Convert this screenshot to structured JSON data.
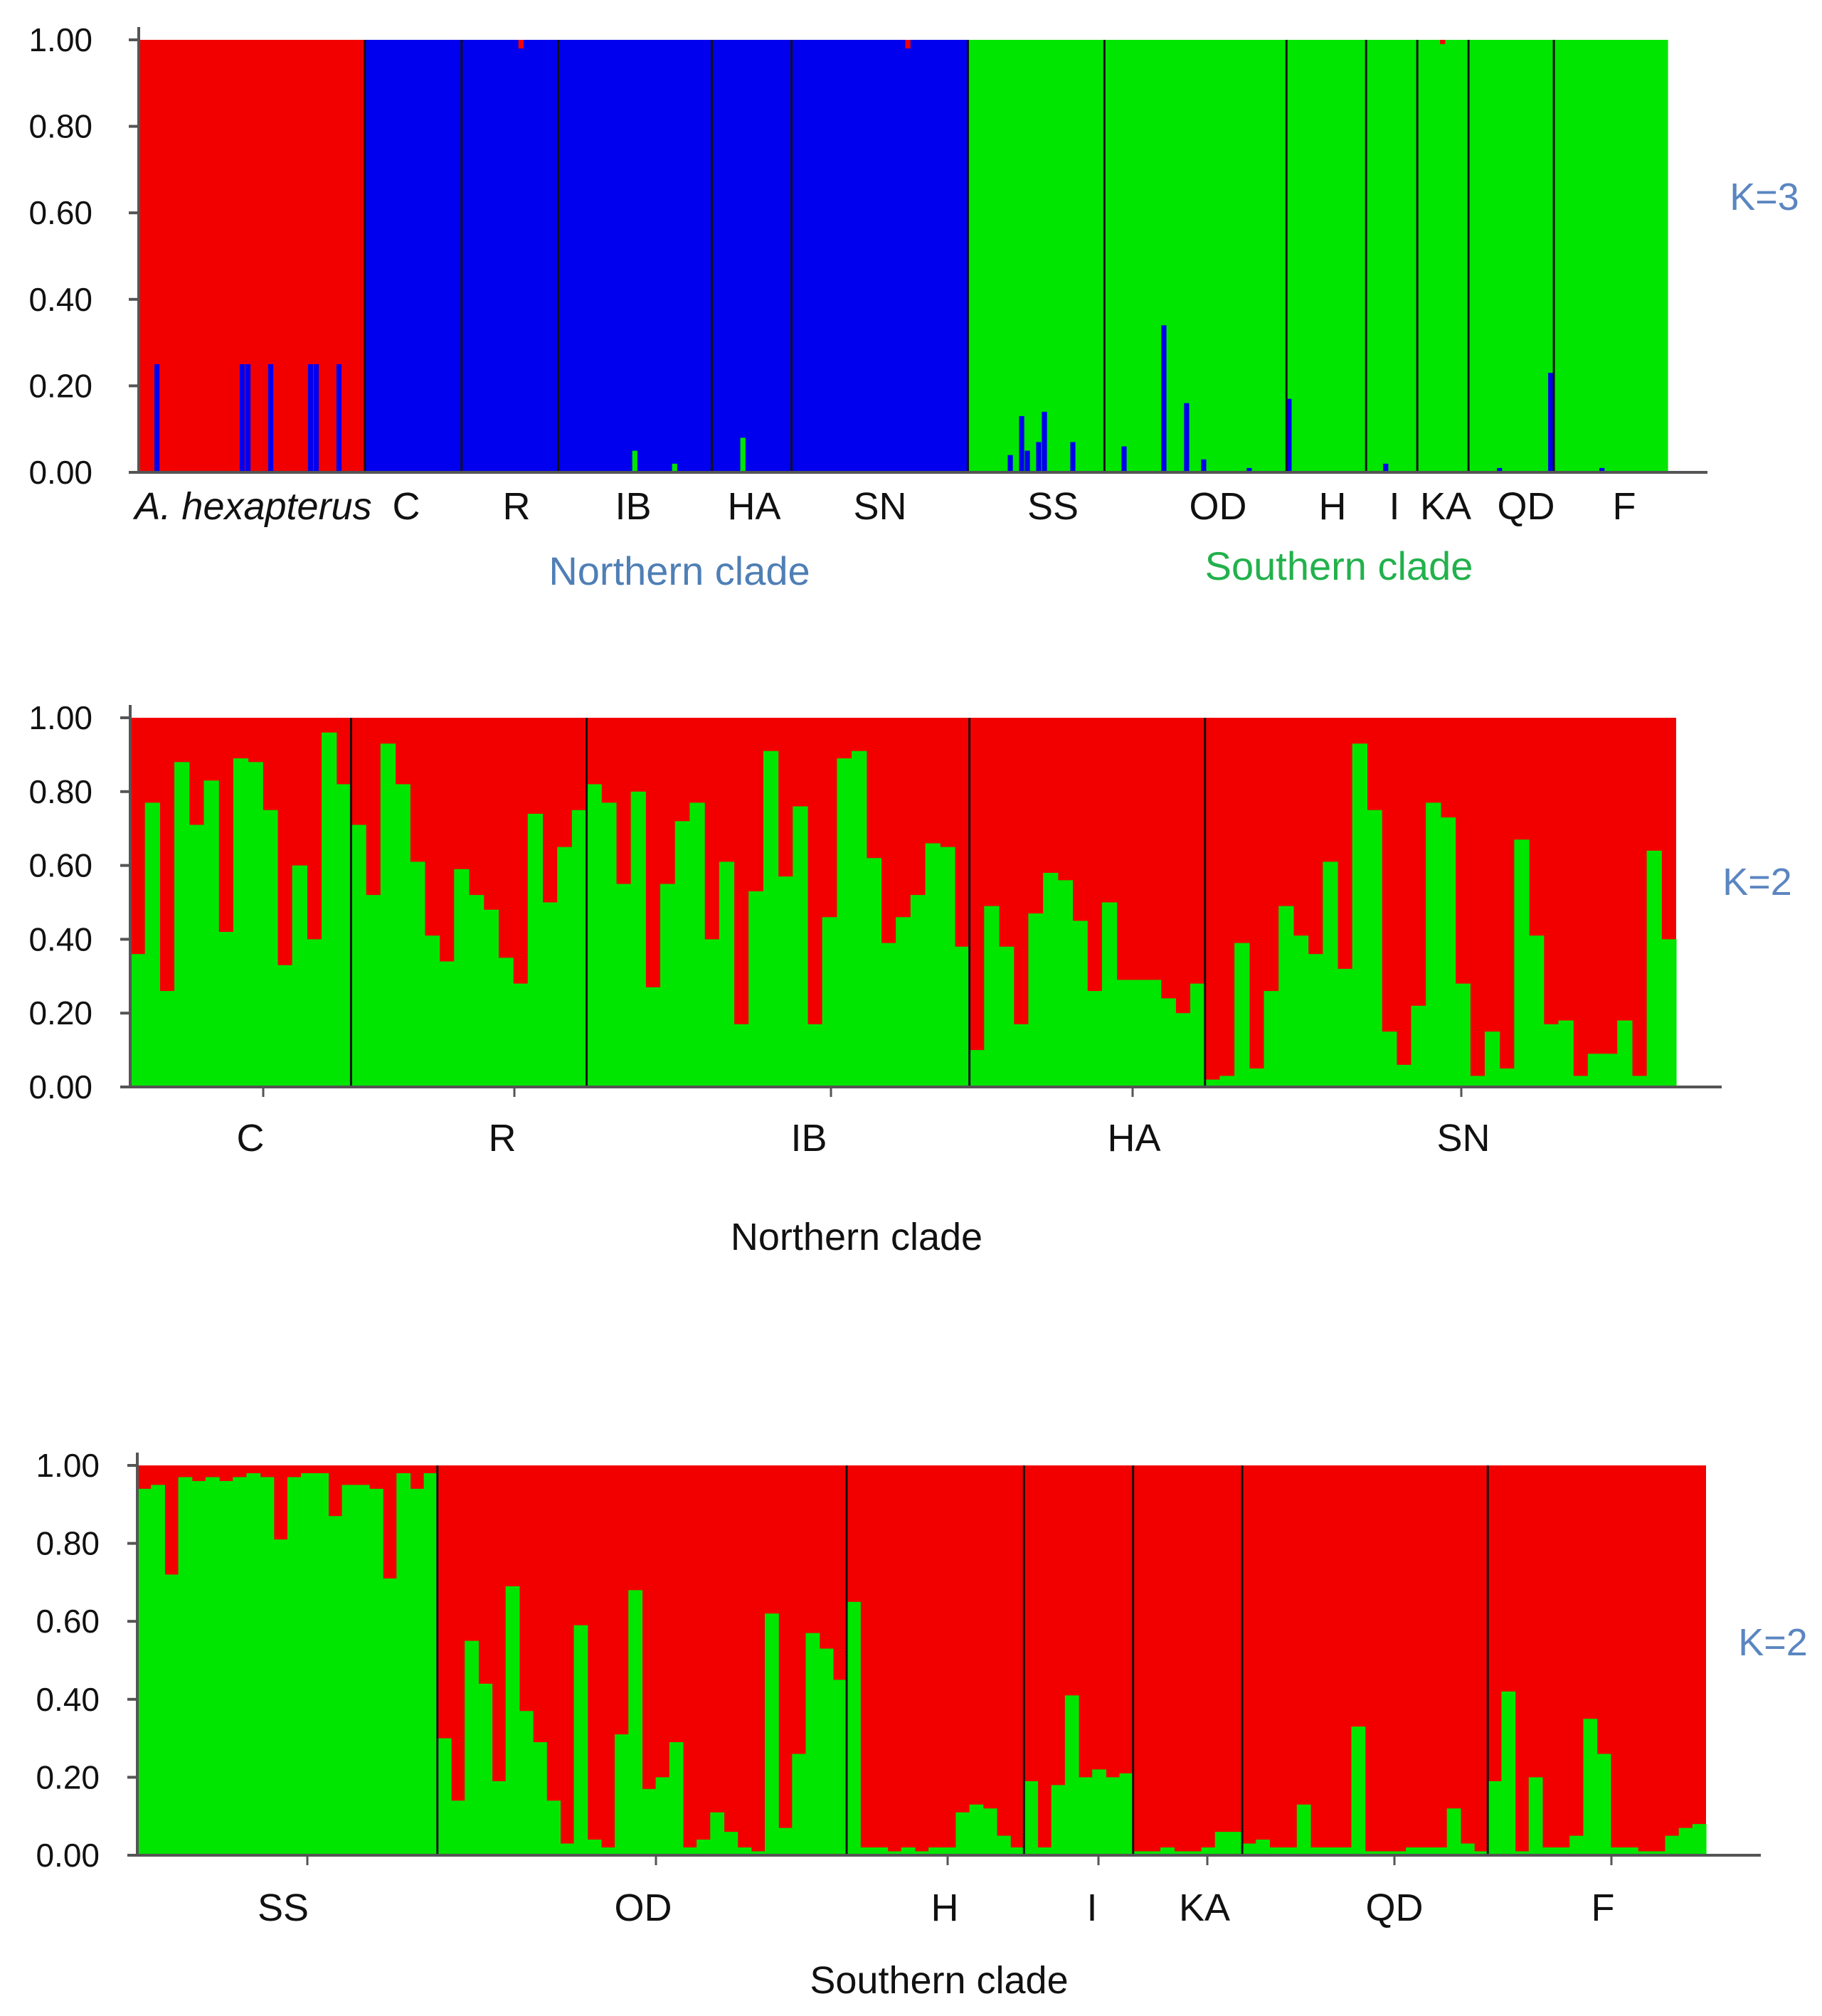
{
  "colors": {
    "red": "#f20000",
    "green": "#00e600",
    "blue": "#0000ee",
    "northern": "#4f7fb5",
    "southern": "#22b14c",
    "klabel": "#5b86c0"
  },
  "chart_data": [
    {
      "type": "bar",
      "stacked": true,
      "ylim": [
        0,
        1
      ],
      "yticks": [
        "0.00",
        "0.20",
        "0.40",
        "0.60",
        "0.80",
        "1.00"
      ],
      "k_label": "K=3",
      "groups": [
        {
          "label": "A. hexapterus",
          "italic": true,
          "n": 40,
          "cluster": "red",
          "other": "blue",
          "spikes": [
            [
              3,
              0.25
            ],
            [
              18,
              0.25
            ],
            [
              19,
              0.25
            ],
            [
              23,
              0.25
            ],
            [
              30,
              0.25
            ],
            [
              31,
              0.25
            ],
            [
              35,
              0.25
            ]
          ]
        },
        {
          "label": "C",
          "n": 17,
          "cluster": "blue",
          "other": "red",
          "spikes": []
        },
        {
          "label": "R",
          "n": 17,
          "cluster": "blue",
          "other": "red",
          "spikes": [
            [
              10,
              0.02
            ]
          ]
        },
        {
          "label": "IB",
          "n": 27,
          "cluster": "blue",
          "other": "green",
          "spikes": [
            [
              13,
              0.05
            ],
            [
              20,
              0.02
            ]
          ]
        },
        {
          "label": "HA",
          "n": 14,
          "cluster": "blue",
          "other": "green",
          "spikes": [
            [
              5,
              0.08
            ]
          ]
        },
        {
          "label": "SN",
          "n": 31,
          "cluster": "blue",
          "other": "red",
          "spikes": [
            [
              20,
              0.02
            ]
          ]
        },
        {
          "label": "SS",
          "n": 24,
          "cluster": "green",
          "other": "blue",
          "spikes": [
            [
              7,
              0.04
            ],
            [
              9,
              0.13
            ],
            [
              10,
              0.05
            ],
            [
              12,
              0.07
            ],
            [
              13,
              0.14
            ],
            [
              18,
              0.07
            ]
          ]
        },
        {
          "label": "OD",
          "n": 32,
          "cluster": "green",
          "other": "blue",
          "spikes": [
            [
              3,
              0.06
            ],
            [
              10,
              0.34
            ],
            [
              14,
              0.16
            ],
            [
              17,
              0.03
            ],
            [
              25,
              0.01
            ]
          ]
        },
        {
          "label": "H",
          "n": 14,
          "cluster": "green",
          "other": "blue",
          "spikes": [
            [
              0,
              0.17
            ]
          ]
        },
        {
          "label": "I",
          "n": 9,
          "cluster": "green",
          "other": "blue",
          "spikes": [
            [
              3,
              0.02
            ]
          ]
        },
        {
          "label": "KA",
          "n": 9,
          "cluster": "green",
          "other": "red",
          "spikes": [
            [
              4,
              0.01
            ]
          ]
        },
        {
          "label": "QD",
          "n": 15,
          "cluster": "green",
          "other": "blue",
          "spikes": [
            [
              5,
              0.01
            ],
            [
              14,
              0.23
            ]
          ]
        },
        {
          "label": "F",
          "n": 20,
          "cluster": "green",
          "other": "blue",
          "spikes": [
            [
              8,
              0.01
            ]
          ]
        }
      ],
      "clade_labels": [
        {
          "text": "Northern clade",
          "color": "northern"
        },
        {
          "text": "Southern clade",
          "color": "southern"
        }
      ]
    },
    {
      "type": "bar",
      "stacked": true,
      "ylim": [
        0,
        1
      ],
      "yticks": [
        "0.00",
        "0.20",
        "0.40",
        "0.60",
        "0.80",
        "1.00"
      ],
      "k_label": "K=2",
      "series_colors": [
        "green",
        "red"
      ],
      "xlabel": "Northern clade",
      "groups": [
        {
          "label": "C",
          "values": [
            0.36,
            0.77,
            0.26,
            0.88,
            0.71,
            0.83,
            0.42,
            0.89,
            0.88,
            0.75,
            0.33,
            0.6,
            0.4,
            0.96,
            0.82
          ]
        },
        {
          "label": "R",
          "values": [
            0.71,
            0.52,
            0.93,
            0.82,
            0.61,
            0.41,
            0.34,
            0.59,
            0.52,
            0.48,
            0.35,
            0.28,
            0.74,
            0.5,
            0.65,
            0.75
          ]
        },
        {
          "label": "IB",
          "values": [
            0.82,
            0.77,
            0.55,
            0.8,
            0.27,
            0.55,
            0.72,
            0.77,
            0.4,
            0.61,
            0.17,
            0.53,
            0.91,
            0.57,
            0.76,
            0.17,
            0.46,
            0.89,
            0.91,
            0.62,
            0.39,
            0.46,
            0.52,
            0.66,
            0.65,
            0.38
          ]
        },
        {
          "label": "HA",
          "values": [
            0.1,
            0.49,
            0.38,
            0.17,
            0.47,
            0.58,
            0.56,
            0.45,
            0.26,
            0.5,
            0.29,
            0.29,
            0.29,
            0.24,
            0.2,
            0.28
          ]
        },
        {
          "label": "SN",
          "values": [
            0.02,
            0.03,
            0.39,
            0.05,
            0.26,
            0.49,
            0.41,
            0.36,
            0.61,
            0.32,
            0.93,
            0.75,
            0.15,
            0.06,
            0.22,
            0.77,
            0.73,
            0.28,
            0.03,
            0.15,
            0.05,
            0.67,
            0.41,
            0.17,
            0.18,
            0.03,
            0.09,
            0.09,
            0.18,
            0.03,
            0.64,
            0.4
          ]
        }
      ]
    },
    {
      "type": "bar",
      "stacked": true,
      "ylim": [
        0,
        1
      ],
      "yticks": [
        "0.00",
        "0.20",
        "0.40",
        "0.60",
        "0.80",
        "1.00"
      ],
      "k_label": "K=2",
      "series_colors": [
        "green",
        "red"
      ],
      "xlabel": "Southern clade",
      "groups": [
        {
          "label": "SS",
          "values": [
            0.94,
            0.95,
            0.72,
            0.97,
            0.96,
            0.97,
            0.96,
            0.97,
            0.98,
            0.97,
            0.81,
            0.97,
            0.98,
            0.98,
            0.87,
            0.95,
            0.95,
            0.94,
            0.71,
            0.98,
            0.94,
            0.98
          ]
        },
        {
          "label": "OD",
          "values": [
            0.3,
            0.14,
            0.55,
            0.44,
            0.19,
            0.69,
            0.37,
            0.29,
            0.14,
            0.03,
            0.59,
            0.04,
            0.02,
            0.31,
            0.68,
            0.17,
            0.2,
            0.29,
            0.02,
            0.04,
            0.11,
            0.06,
            0.02,
            0.01,
            0.62,
            0.07,
            0.26,
            0.57,
            0.53,
            0.45
          ]
        },
        {
          "label": "H",
          "values": [
            0.65,
            0.02,
            0.02,
            0.01,
            0.02,
            0.01,
            0.02,
            0.02,
            0.11,
            0.13,
            0.12,
            0.05,
            0.02
          ]
        },
        {
          "label": "I",
          "values": [
            0.19,
            0.02,
            0.18,
            0.41,
            0.2,
            0.22,
            0.2,
            0.21
          ]
        },
        {
          "label": "KA",
          "values": [
            0.01,
            0.01,
            0.02,
            0.01,
            0.01,
            0.02,
            0.06,
            0.06
          ]
        },
        {
          "label": "QD",
          "values": [
            0.03,
            0.04,
            0.02,
            0.02,
            0.13,
            0.02,
            0.02,
            0.02,
            0.33,
            0.01,
            0.01,
            0.01,
            0.02,
            0.02,
            0.02,
            0.12,
            0.03,
            0.01
          ]
        },
        {
          "label": "F",
          "values": [
            0.19,
            0.42,
            0.01,
            0.2,
            0.02,
            0.02,
            0.05,
            0.35,
            0.26,
            0.02,
            0.02,
            0.01,
            0.01,
            0.05,
            0.07,
            0.08
          ]
        }
      ]
    }
  ]
}
